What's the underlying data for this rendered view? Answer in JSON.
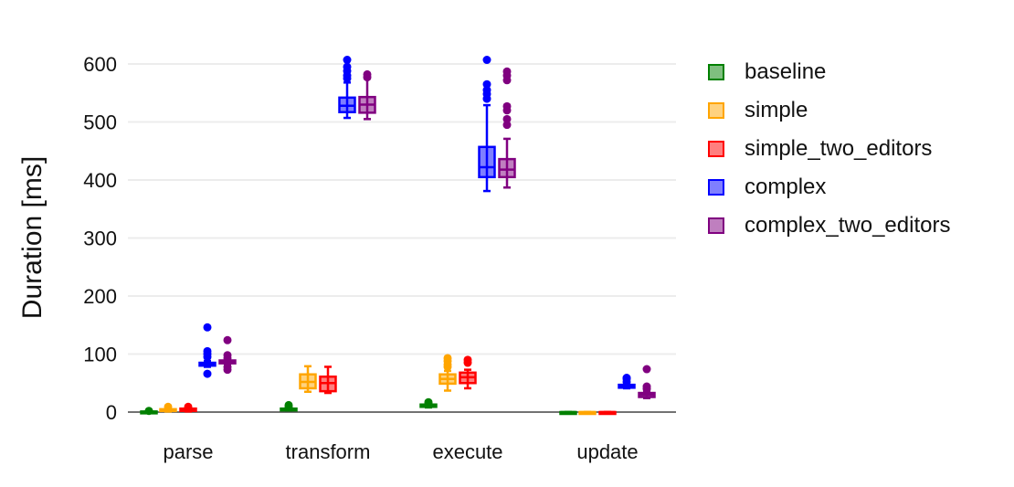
{
  "chart_data": {
    "type": "box",
    "title": "",
    "xlabel": "",
    "ylabel": "Duration [ms]",
    "ylim": [
      -25,
      650
    ],
    "yticks": [
      0,
      100,
      200,
      300,
      400,
      500,
      600
    ],
    "grid": true,
    "legend_position": "right",
    "categories": [
      "parse",
      "transform",
      "execute",
      "update"
    ],
    "series": [
      {
        "name": "baseline",
        "color": "#008000",
        "boxes": [
          {
            "min": 0,
            "q1": 0,
            "median": 0.5,
            "q3": 1,
            "max": 1,
            "outliers": [
              2
            ]
          },
          {
            "min": 3,
            "q1": 4,
            "median": 5,
            "q3": 6,
            "max": 7,
            "outliers": [
              9,
              12
            ]
          },
          {
            "min": 8,
            "q1": 9,
            "median": 11,
            "q3": 13,
            "max": 14,
            "outliers": [
              15,
              17
            ]
          },
          {
            "min": 0,
            "q1": 0,
            "median": 0,
            "q3": 0,
            "max": 0,
            "outliers": []
          }
        ]
      },
      {
        "name": "simple",
        "color": "#ffa500",
        "boxes": [
          {
            "min": 1,
            "q1": 2,
            "median": 3,
            "q3": 5,
            "max": 6,
            "outliers": [
              9
            ]
          },
          {
            "min": 35,
            "q1": 41,
            "median": 52,
            "q3": 65,
            "max": 79,
            "outliers": []
          },
          {
            "min": 37,
            "q1": 49,
            "median": 57,
            "q3": 65,
            "max": 71,
            "outliers": [
              78,
              82,
              88,
              93
            ]
          },
          {
            "min": 0,
            "q1": 0,
            "median": 0,
            "q3": 0,
            "max": 0,
            "outliers": []
          }
        ]
      },
      {
        "name": "simple_two_editors",
        "color": "#ff0000",
        "boxes": [
          {
            "min": 1,
            "q1": 2,
            "median": 4,
            "q3": 6,
            "max": 7,
            "outliers": [
              9
            ]
          },
          {
            "min": 33,
            "q1": 36,
            "median": 50,
            "q3": 61,
            "max": 78,
            "outliers": []
          },
          {
            "min": 41,
            "q1": 50,
            "median": 60,
            "q3": 68,
            "max": 73,
            "outliers": [
              85,
              90
            ]
          },
          {
            "min": 0,
            "q1": 0,
            "median": 0,
            "q3": 0,
            "max": 0,
            "outliers": []
          }
        ]
      },
      {
        "name": "complex",
        "color": "#0000ff",
        "boxes": [
          {
            "min": 78,
            "q1": 80,
            "median": 83,
            "q3": 85,
            "max": 88,
            "outliers": [
              66,
              95,
              100,
              105,
              146
            ]
          },
          {
            "min": 507,
            "q1": 517,
            "median": 528,
            "q3": 542,
            "max": 568,
            "outliers": [
              575,
              580,
              588,
              595,
              607
            ]
          },
          {
            "min": 381,
            "q1": 405,
            "median": 422,
            "q3": 457,
            "max": 529,
            "outliers": [
              540,
              548,
              555,
              565,
              607
            ]
          },
          {
            "min": 41,
            "q1": 42,
            "median": 45,
            "q3": 47,
            "max": 48,
            "outliers": [
              52,
              57,
              59
            ]
          }
        ]
      },
      {
        "name": "complex_two_editors",
        "color": "#800080",
        "boxes": [
          {
            "min": 82,
            "q1": 84,
            "median": 87,
            "q3": 89,
            "max": 91,
            "outliers": [
              73,
              78,
              93,
              98,
              124
            ]
          },
          {
            "min": 505,
            "q1": 516,
            "median": 530,
            "q3": 543,
            "max": 575,
            "outliers": [
              577,
              582
            ]
          },
          {
            "min": 387,
            "q1": 405,
            "median": 418,
            "q3": 436,
            "max": 471,
            "outliers": [
              495,
              505,
              520,
              527,
              572,
              580,
              587
            ]
          },
          {
            "min": 24,
            "q1": 26,
            "median": 30,
            "q3": 33,
            "max": 35,
            "outliers": [
              40,
              44,
              74
            ]
          }
        ]
      }
    ]
  }
}
